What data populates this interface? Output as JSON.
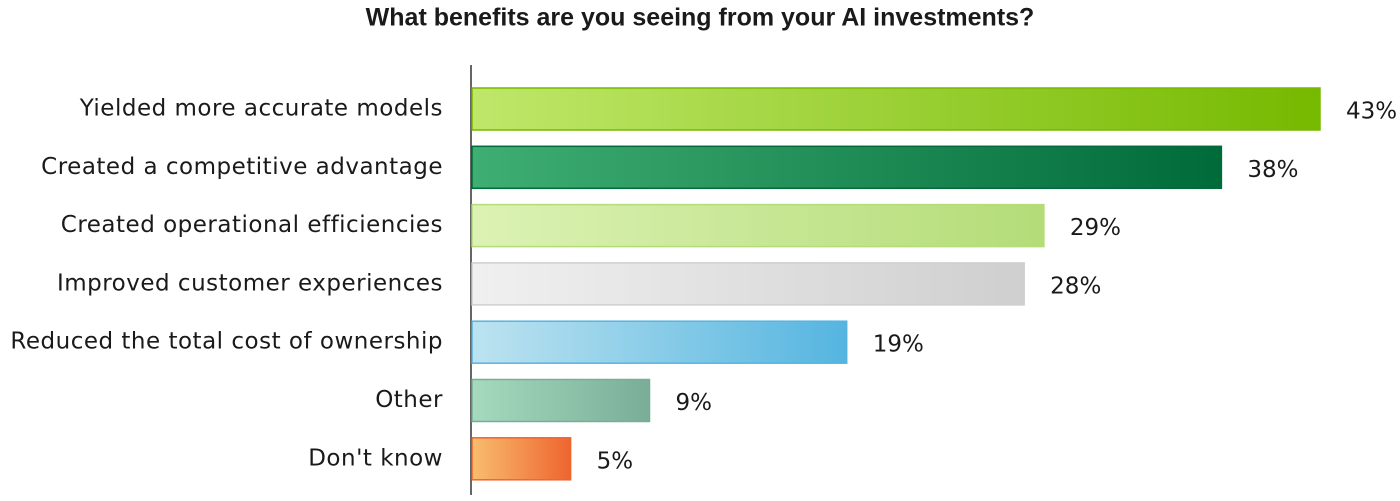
{
  "chart_data": {
    "type": "bar",
    "orientation": "horizontal",
    "title": "What benefits are you seeing from your AI investments?",
    "categories": [
      "Yielded more accurate models",
      "Created a competitive advantage",
      "Created operational efficiencies",
      "Improved customer experiences",
      "Reduced the total cost of ownership",
      "Other",
      "Don't know"
    ],
    "values": [
      43,
      38,
      29,
      28,
      19,
      9,
      5
    ],
    "value_labels": [
      "43%",
      "38%",
      "29%",
      "28%",
      "19%",
      "9%",
      "5%"
    ],
    "colors": [
      [
        "#bfe76a",
        "#76b900"
      ],
      [
        "#3fae72",
        "#006b3a"
      ],
      [
        "#dcf2b4",
        "#b4dc78"
      ],
      [
        "#f0f0f0",
        "#cfcfcf"
      ],
      [
        "#bde3f0",
        "#55b5e0"
      ],
      [
        "#a6dabd",
        "#79ad98"
      ],
      [
        "#f9bd6e",
        "#ee6530"
      ]
    ]
  }
}
